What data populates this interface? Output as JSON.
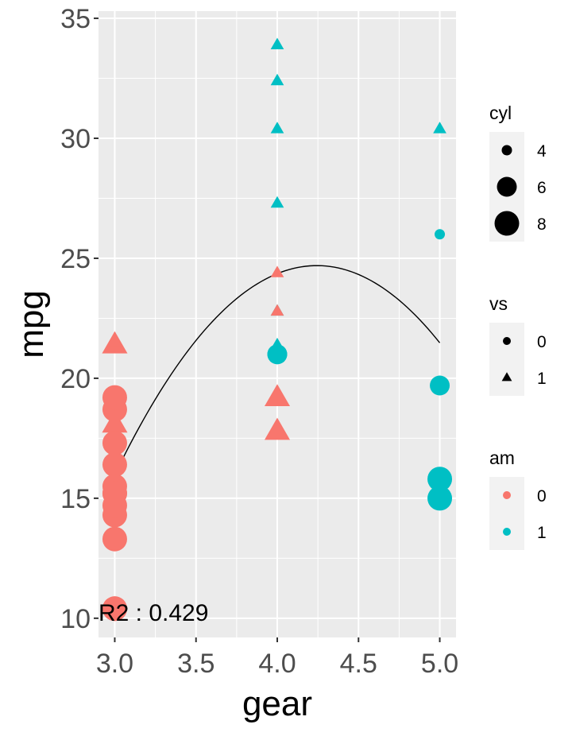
{
  "chart_data": {
    "type": "scatter",
    "title": "",
    "xlabel": "gear",
    "ylabel": "mpg",
    "xlim": [
      2.9,
      5.1
    ],
    "ylim": [
      9.2,
      35.3
    ],
    "x_ticks": [
      3.0,
      3.5,
      4.0,
      4.5,
      5.0
    ],
    "x_tick_labels": [
      "3.0",
      "3.5",
      "4.0",
      "4.5",
      "5.0"
    ],
    "y_ticks": [
      10,
      15,
      20,
      25,
      30,
      35
    ],
    "y_tick_labels": [
      "10",
      "15",
      "20",
      "25",
      "30",
      "35"
    ],
    "grid": true,
    "annotation": "R2 : 0.429",
    "fit_curve": {
      "type": "quadratic",
      "x_range": [
        3.0,
        5.0
      ],
      "points": [
        [
          3.0,
          16.1
        ],
        [
          3.5,
          21.3
        ],
        [
          4.0,
          24.4
        ],
        [
          4.2,
          24.8
        ],
        [
          4.5,
          24.4
        ],
        [
          5.0,
          21.4
        ]
      ]
    },
    "points": [
      {
        "gear": 3,
        "mpg": 21.4,
        "cyl": 6,
        "vs": 1,
        "am": 0
      },
      {
        "gear": 3,
        "mpg": 18.7,
        "cyl": 8,
        "vs": 0,
        "am": 0
      },
      {
        "gear": 3,
        "mpg": 18.1,
        "cyl": 6,
        "vs": 1,
        "am": 0
      },
      {
        "gear": 3,
        "mpg": 14.3,
        "cyl": 8,
        "vs": 0,
        "am": 0
      },
      {
        "gear": 3,
        "mpg": 16.4,
        "cyl": 8,
        "vs": 0,
        "am": 0
      },
      {
        "gear": 3,
        "mpg": 17.3,
        "cyl": 8,
        "vs": 0,
        "am": 0
      },
      {
        "gear": 3,
        "mpg": 15.2,
        "cyl": 8,
        "vs": 0,
        "am": 0
      },
      {
        "gear": 3,
        "mpg": 10.4,
        "cyl": 8,
        "vs": 0,
        "am": 0
      },
      {
        "gear": 3,
        "mpg": 10.4,
        "cyl": 8,
        "vs": 0,
        "am": 0
      },
      {
        "gear": 3,
        "mpg": 14.7,
        "cyl": 8,
        "vs": 0,
        "am": 0
      },
      {
        "gear": 3,
        "mpg": 21.5,
        "cyl": 4,
        "vs": 1,
        "am": 0
      },
      {
        "gear": 3,
        "mpg": 15.5,
        "cyl": 8,
        "vs": 0,
        "am": 0
      },
      {
        "gear": 3,
        "mpg": 15.2,
        "cyl": 8,
        "vs": 0,
        "am": 0
      },
      {
        "gear": 3,
        "mpg": 13.3,
        "cyl": 8,
        "vs": 0,
        "am": 0
      },
      {
        "gear": 3,
        "mpg": 19.2,
        "cyl": 8,
        "vs": 0,
        "am": 0
      },
      {
        "gear": 4,
        "mpg": 21.0,
        "cyl": 6,
        "vs": 0,
        "am": 1
      },
      {
        "gear": 4,
        "mpg": 21.0,
        "cyl": 6,
        "vs": 0,
        "am": 1
      },
      {
        "gear": 4,
        "mpg": 22.8,
        "cyl": 4,
        "vs": 1,
        "am": 1
      },
      {
        "gear": 4,
        "mpg": 24.4,
        "cyl": 4,
        "vs": 1,
        "am": 0
      },
      {
        "gear": 4,
        "mpg": 22.8,
        "cyl": 4,
        "vs": 1,
        "am": 0
      },
      {
        "gear": 4,
        "mpg": 19.2,
        "cyl": 6,
        "vs": 1,
        "am": 0
      },
      {
        "gear": 4,
        "mpg": 17.8,
        "cyl": 6,
        "vs": 1,
        "am": 0
      },
      {
        "gear": 4,
        "mpg": 32.4,
        "cyl": 4,
        "vs": 1,
        "am": 1
      },
      {
        "gear": 4,
        "mpg": 30.4,
        "cyl": 4,
        "vs": 1,
        "am": 1
      },
      {
        "gear": 4,
        "mpg": 33.9,
        "cyl": 4,
        "vs": 1,
        "am": 1
      },
      {
        "gear": 4,
        "mpg": 27.3,
        "cyl": 4,
        "vs": 1,
        "am": 1
      },
      {
        "gear": 4,
        "mpg": 21.4,
        "cyl": 4,
        "vs": 1,
        "am": 1
      },
      {
        "gear": 5,
        "mpg": 26.0,
        "cyl": 4,
        "vs": 0,
        "am": 1
      },
      {
        "gear": 5,
        "mpg": 30.4,
        "cyl": 4,
        "vs": 1,
        "am": 1
      },
      {
        "gear": 5,
        "mpg": 15.8,
        "cyl": 8,
        "vs": 0,
        "am": 1
      },
      {
        "gear": 5,
        "mpg": 19.7,
        "cyl": 6,
        "vs": 0,
        "am": 1
      },
      {
        "gear": 5,
        "mpg": 15.0,
        "cyl": 8,
        "vs": 0,
        "am": 1
      }
    ],
    "legends": [
      {
        "title": "cyl",
        "kind": "size",
        "entries": [
          {
            "label": "4",
            "value": 4
          },
          {
            "label": "6",
            "value": 6
          },
          {
            "label": "8",
            "value": 8
          }
        ]
      },
      {
        "title": "vs",
        "kind": "shape",
        "entries": [
          {
            "label": "0",
            "shape": "circle"
          },
          {
            "label": "1",
            "shape": "triangle"
          }
        ]
      },
      {
        "title": "am",
        "kind": "color",
        "entries": [
          {
            "label": "0",
            "color": "#F8766D"
          },
          {
            "label": "1",
            "color": "#00BFC4"
          }
        ]
      }
    ],
    "legend_position": "right",
    "colors": {
      "am_0": "#F8766D",
      "am_1": "#00BFC4",
      "panel_bg": "#EBEBEB",
      "grid": "#FFFFFF",
      "fit_line": "#000000"
    },
    "point_size_by_cyl": {
      "4": 6.5,
      "6": 12.5,
      "8": 15.5
    }
  }
}
